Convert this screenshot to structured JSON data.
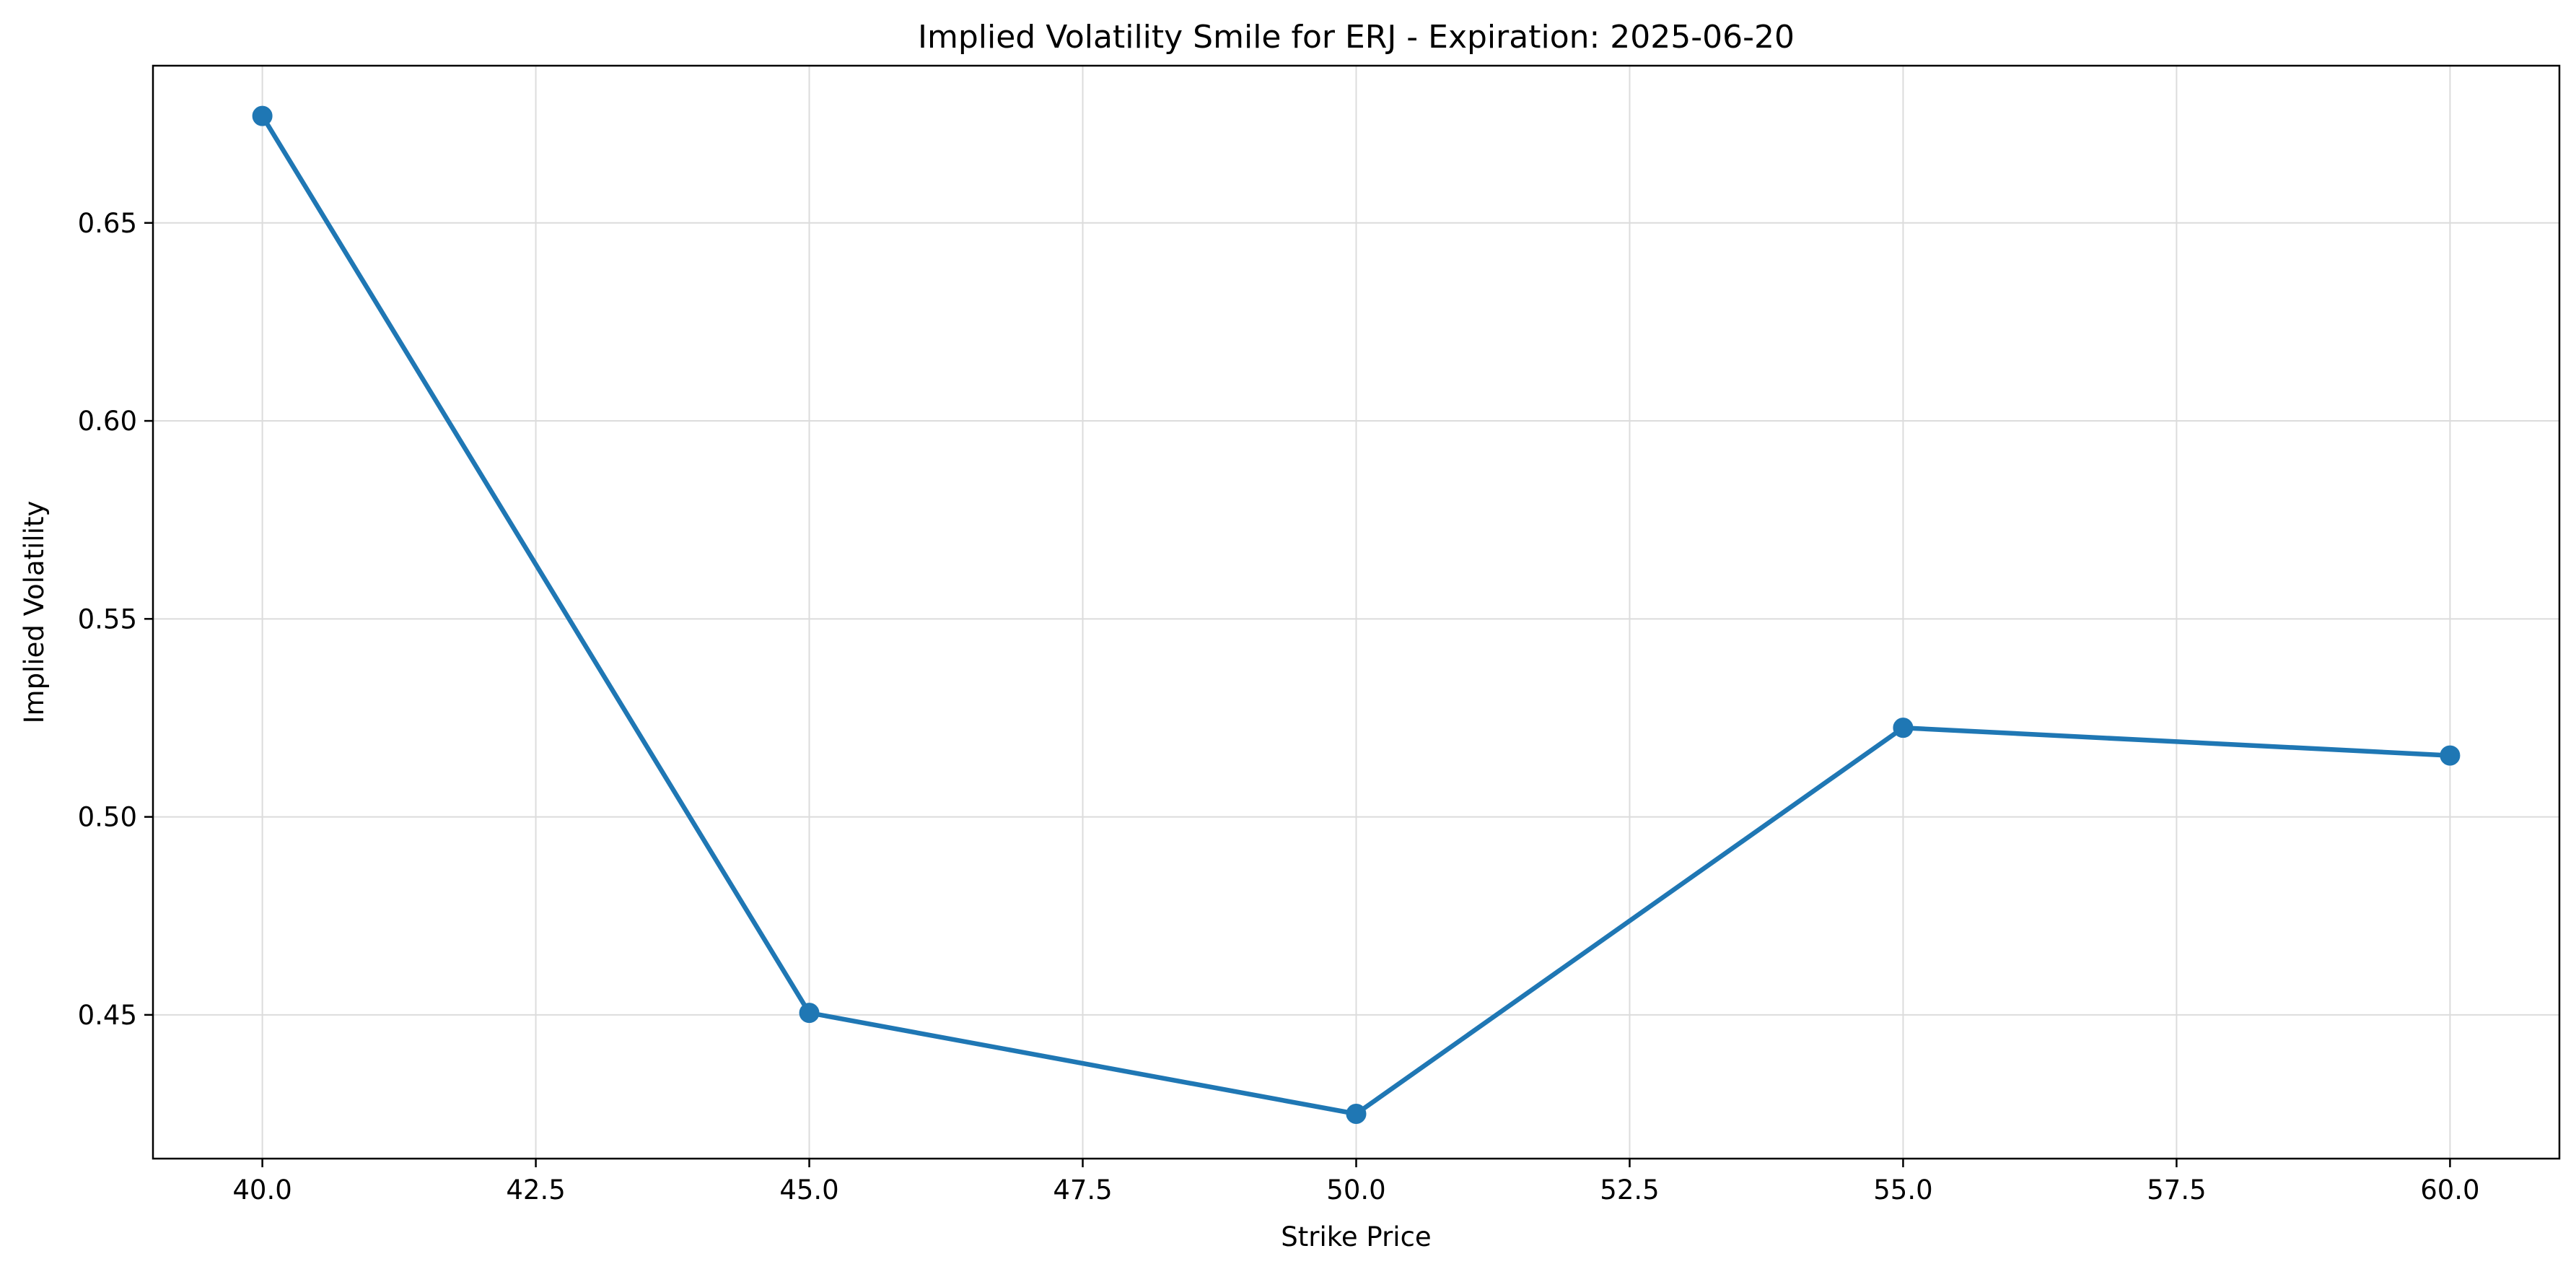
{
  "chart_data": {
    "type": "line",
    "title": "Implied Volatility Smile for ERJ - Expiration: 2025-06-20",
    "xlabel": "Strike Price",
    "ylabel": "Implied Volatility",
    "x": [
      40.0,
      45.0,
      50.0,
      55.0,
      60.0
    ],
    "series": [
      {
        "values": [
          0.677,
          0.4505,
          0.425,
          0.5225,
          0.5155
        ],
        "color": "#1f77b4",
        "marker": "circle"
      }
    ],
    "xlim": [
      39.0,
      61.0
    ],
    "ylim": [
      0.4137,
      0.6897
    ],
    "x_ticks": [
      40.0,
      42.5,
      45.0,
      47.5,
      50.0,
      52.5,
      55.0,
      57.5,
      60.0
    ],
    "x_tick_labels": [
      "40.0",
      "42.5",
      "45.0",
      "47.5",
      "50.0",
      "52.5",
      "55.0",
      "57.5",
      "60.0"
    ],
    "y_ticks": [
      0.45,
      0.5,
      0.55,
      0.6,
      0.65
    ],
    "y_tick_labels": [
      "0.45",
      "0.50",
      "0.55",
      "0.60",
      "0.65"
    ],
    "grid": true,
    "legend": "none"
  }
}
